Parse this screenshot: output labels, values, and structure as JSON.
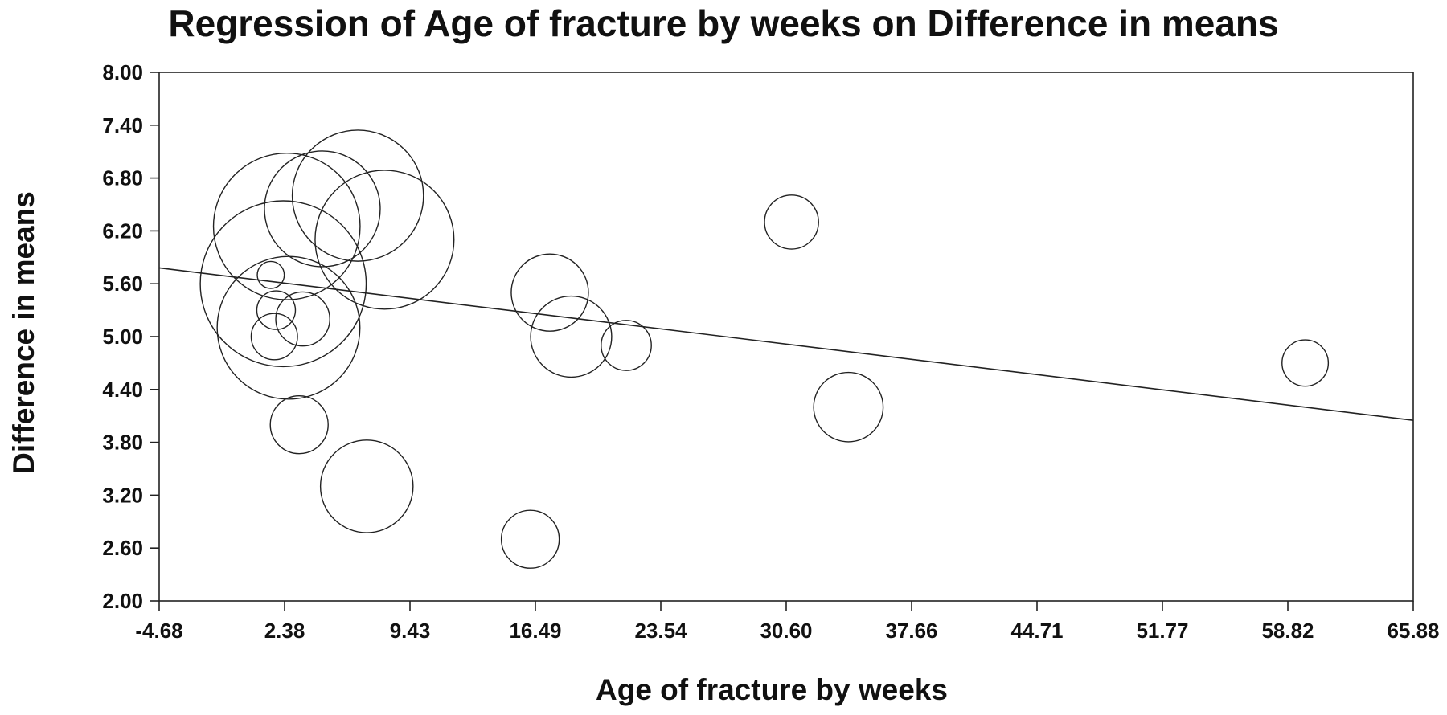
{
  "chart_data": {
    "type": "scatter",
    "title": "Regression of Age of fracture by weeks on Difference in means",
    "xlabel": "Age of fracture by weeks",
    "ylabel": "Difference in means",
    "xlim": [
      -4.68,
      65.88
    ],
    "ylim": [
      2.0,
      8.0
    ],
    "x_ticks": [
      "-4.68",
      "2.38",
      "9.43",
      "16.49",
      "23.54",
      "30.60",
      "37.66",
      "44.71",
      "51.77",
      "58.82",
      "65.88"
    ],
    "y_ticks": [
      "2.00",
      "2.60",
      "3.20",
      "3.80",
      "4.40",
      "5.00",
      "5.60",
      "6.20",
      "6.80",
      "7.40",
      "8.00"
    ],
    "grid": false,
    "bubble_weight_note": "bubble size encodes study weight (relative)",
    "points": [
      {
        "x": 1.6,
        "y": 5.7,
        "w": 0.7
      },
      {
        "x": 1.9,
        "y": 5.3,
        "w": 1.0
      },
      {
        "x": 1.8,
        "y": 5.0,
        "w": 1.2
      },
      {
        "x": 3.4,
        "y": 5.2,
        "w": 1.4
      },
      {
        "x": 3.2,
        "y": 4.0,
        "w": 1.5
      },
      {
        "x": 2.6,
        "y": 5.1,
        "w": 3.7
      },
      {
        "x": 2.3,
        "y": 5.6,
        "w": 4.3
      },
      {
        "x": 2.5,
        "y": 6.25,
        "w": 3.8
      },
      {
        "x": 4.5,
        "y": 6.45,
        "w": 3.0
      },
      {
        "x": 6.5,
        "y": 6.6,
        "w": 3.4
      },
      {
        "x": 8.0,
        "y": 6.1,
        "w": 3.6
      },
      {
        "x": 7.0,
        "y": 3.3,
        "w": 2.4
      },
      {
        "x": 16.2,
        "y": 2.7,
        "w": 1.5
      },
      {
        "x": 17.3,
        "y": 5.5,
        "w": 2.0
      },
      {
        "x": 18.5,
        "y": 5.0,
        "w": 2.1
      },
      {
        "x": 21.6,
        "y": 4.9,
        "w": 1.3
      },
      {
        "x": 30.9,
        "y": 6.3,
        "w": 1.4
      },
      {
        "x": 34.1,
        "y": 4.2,
        "w": 1.8
      },
      {
        "x": 59.8,
        "y": 4.7,
        "w": 1.2
      }
    ],
    "regression_line": {
      "x": [
        -4.68,
        65.88
      ],
      "y": [
        5.78,
        4.05
      ]
    }
  }
}
